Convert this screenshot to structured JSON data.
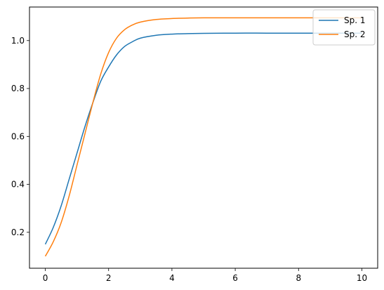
{
  "chart_data": {
    "type": "line",
    "title": "",
    "xlabel": "",
    "ylabel": "",
    "xlim": [
      -0.5,
      10.5
    ],
    "ylim": [
      0.05,
      1.14
    ],
    "xticks": [
      0,
      2,
      4,
      6,
      8,
      10
    ],
    "xtick_labels": [
      "0",
      "2",
      "4",
      "6",
      "8",
      "10"
    ],
    "yticks": [
      0.2,
      0.4,
      0.6,
      0.8,
      1.0
    ],
    "ytick_labels": [
      "0.2",
      "0.4",
      "0.6",
      "0.8",
      "1.0"
    ],
    "grid": false,
    "legend": "top-right",
    "x": [
      0,
      0.25,
      0.5,
      0.75,
      1.0,
      1.25,
      1.5,
      1.75,
      2.0,
      2.25,
      2.5,
      2.75,
      3.0,
      3.5,
      4.0,
      4.5,
      5.0,
      6.0,
      7.0,
      8.0,
      9.0,
      10.0
    ],
    "series": [
      {
        "name": "Sp. 1",
        "color": "#1f77b4",
        "values": [
          0.15,
          0.22,
          0.31,
          0.42,
          0.53,
          0.64,
          0.74,
          0.83,
          0.89,
          0.94,
          0.975,
          0.995,
          1.01,
          1.022,
          1.027,
          1.029,
          1.03,
          1.031,
          1.031,
          1.031,
          1.031,
          1.031
        ]
      },
      {
        "name": "Sp. 2",
        "color": "#ff7f0e",
        "values": [
          0.1,
          0.16,
          0.24,
          0.35,
          0.48,
          0.61,
          0.74,
          0.86,
          0.95,
          1.01,
          1.045,
          1.065,
          1.077,
          1.088,
          1.092,
          1.094,
          1.095,
          1.095,
          1.095,
          1.095,
          1.095,
          1.095
        ]
      }
    ]
  }
}
